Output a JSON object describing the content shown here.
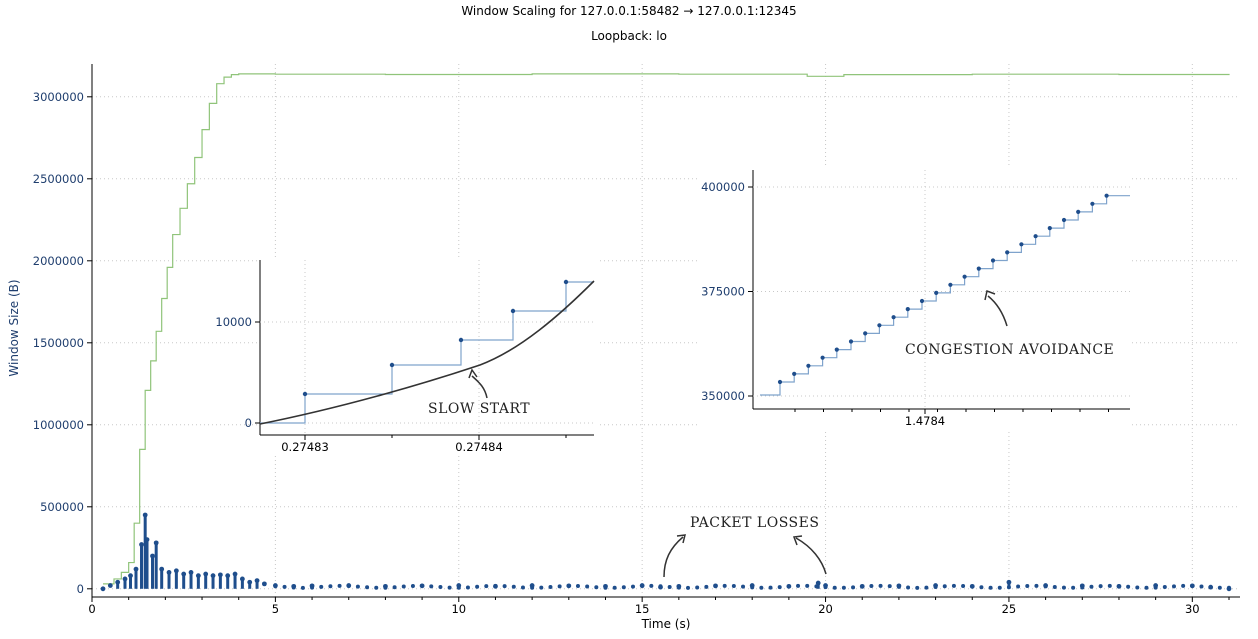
{
  "title": "Window Scaling for 127.0.0.1:58482 → 127.0.0.1:12345",
  "subtitle": "Loopback: lo",
  "colors": {
    "window": "#90c47a",
    "segments": "#1f4e8c",
    "step": "#7fa3cc",
    "annotation": "#222222"
  },
  "chart_data": {
    "type": "scatter",
    "xlabel": "Time (s)",
    "ylabel": "Window Size (B)",
    "xlim": [
      0,
      31.3
    ],
    "ylim": [
      -50000,
      3200000
    ],
    "xticks": [
      0,
      5,
      10,
      15,
      20,
      25,
      30
    ],
    "yticks": [
      0,
      500000,
      1000000,
      1500000,
      2000000,
      2500000,
      3000000
    ],
    "grid": true,
    "series": [
      {
        "name": "",
        "style": "step-line",
        "x": [
          0.3,
          0.6,
          0.8,
          1.0,
          1.15,
          1.3,
          1.45,
          1.6,
          1.75,
          1.9,
          2.05,
          2.2,
          2.4,
          2.6,
          2.8,
          3.0,
          3.2,
          3.4,
          3.6,
          3.8,
          4.0,
          4.2,
          4.4,
          5,
          8,
          12,
          16,
          19.5,
          20.5,
          24,
          28,
          31
        ],
        "y": [
          30000,
          60000,
          100000,
          160000,
          400000,
          850000,
          1210000,
          1390000,
          1570000,
          1770000,
          1960000,
          2160000,
          2320000,
          2470000,
          2630000,
          2800000,
          2960000,
          3080000,
          3120000,
          3135000,
          3140000,
          3140000,
          3140000,
          3138000,
          3136000,
          3140000,
          3138000,
          3125000,
          3135000,
          3138000,
          3136000,
          3140000
        ]
      },
      {
        "name": "",
        "style": "points",
        "x": [
          0.3,
          0.5,
          0.7,
          0.9,
          1.05,
          1.2,
          1.35,
          1.45,
          1.5,
          1.65,
          1.75,
          1.9,
          2.1,
          2.3,
          2.5,
          2.7,
          2.9,
          3.1,
          3.3,
          3.5,
          3.7,
          3.9,
          4.1,
          4.3,
          4.5,
          4.7,
          5.0,
          5.5,
          6,
          7,
          8,
          9,
          10,
          11,
          12,
          13,
          14,
          15,
          15.5,
          16,
          17,
          18,
          19,
          19.8,
          20,
          21,
          22,
          23,
          24,
          25,
          26,
          27,
          28,
          29,
          30,
          30.5,
          31
        ],
        "y": [
          0,
          20000,
          40000,
          60000,
          80000,
          120000,
          270000,
          450000,
          300000,
          200000,
          280000,
          120000,
          100000,
          110000,
          90000,
          100000,
          80000,
          90000,
          80000,
          85000,
          80000,
          90000,
          60000,
          40000,
          50000,
          30000,
          20000,
          15000,
          18000,
          20000,
          15000,
          18000,
          20000,
          15000,
          20000,
          18000,
          15000,
          20000,
          10000,
          15000,
          18000,
          20000,
          15000,
          35000,
          20000,
          15000,
          18000,
          20000,
          15000,
          40000,
          20000,
          18000,
          15000,
          20000,
          18000,
          10000,
          0
        ]
      }
    ],
    "insets": [
      {
        "type": "line",
        "xticks": [
          "0.27483",
          "0.27484"
        ],
        "yticks": [
          0,
          10000
        ],
        "annotation": "SLOW  START"
      },
      {
        "type": "line",
        "xticks": [
          "1.4784"
        ],
        "yticks": [
          350000,
          375000,
          400000
        ],
        "annotation": "CONGESTION  AVOIDANCE"
      }
    ],
    "annotations": [
      "PACKET  LOSSES"
    ]
  }
}
